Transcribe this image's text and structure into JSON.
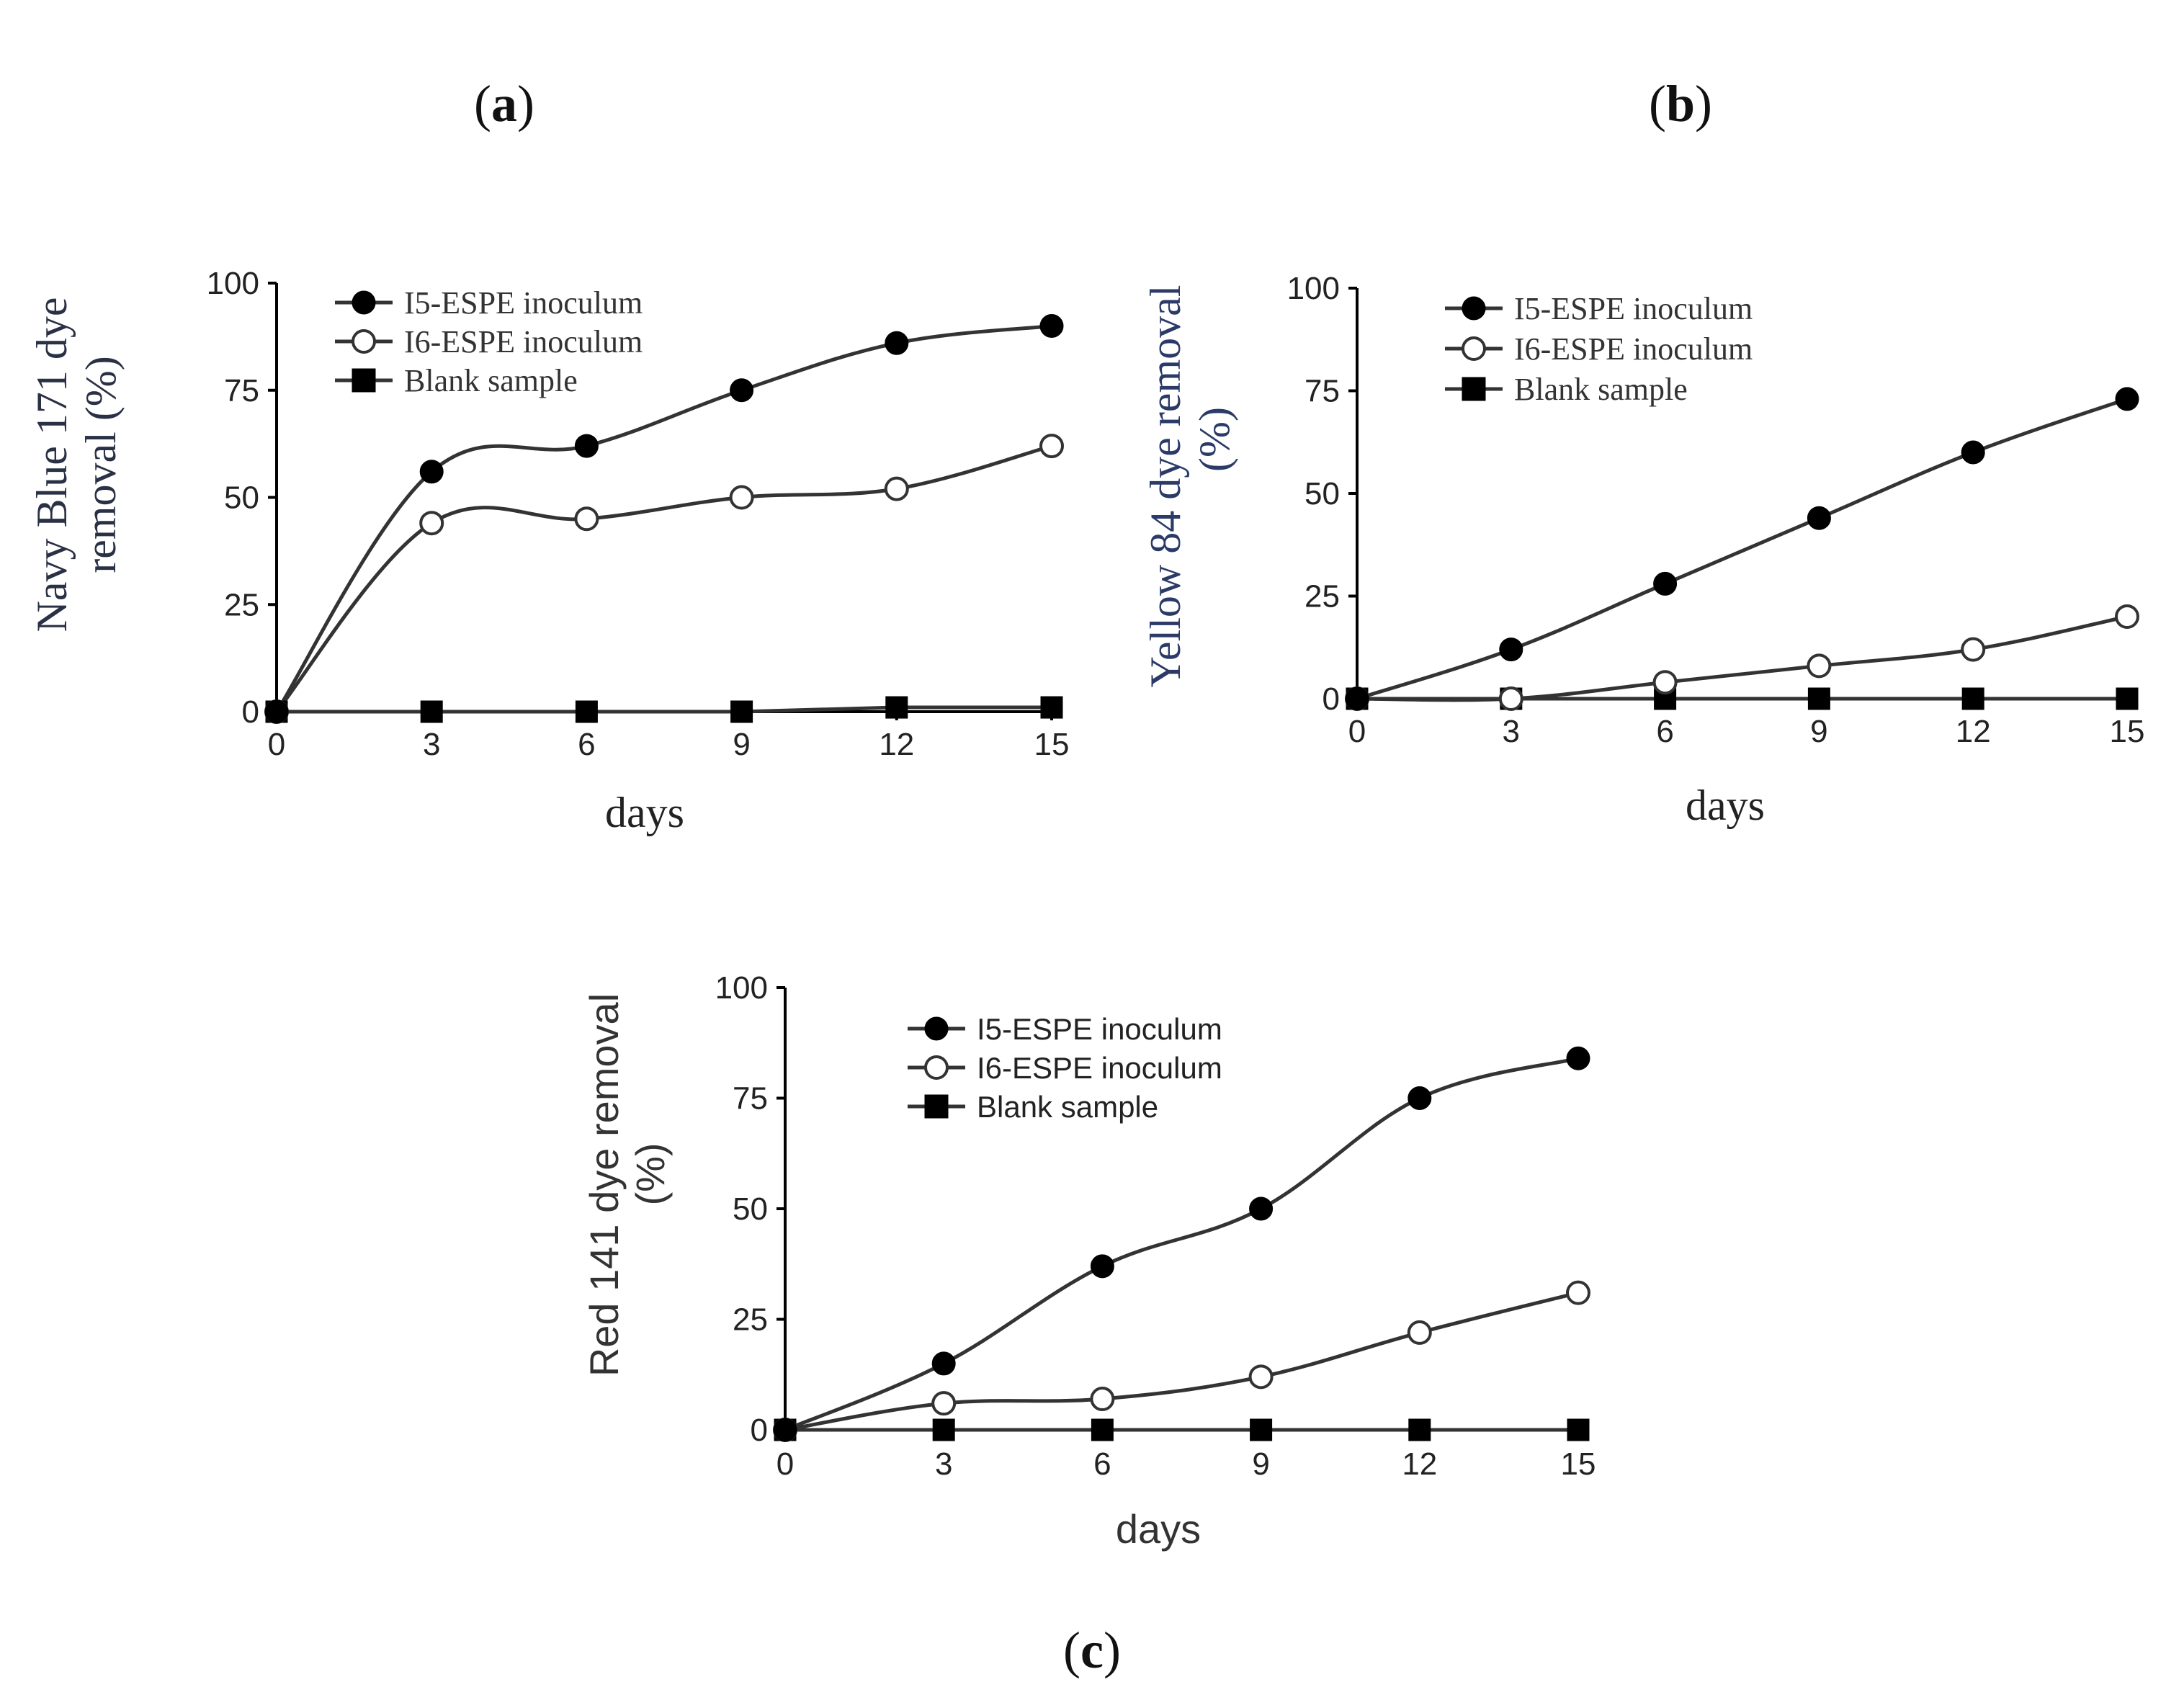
{
  "panel_labels": [
    {
      "open": "(",
      "letter": "a",
      "close": ")"
    },
    {
      "open": "(",
      "letter": "b",
      "close": ")"
    },
    {
      "open": "(",
      "letter": "c",
      "close": ")"
    }
  ],
  "colors": {
    "line": "#333333",
    "marker_filled": "#000000",
    "marker_open_fill": "#ffffff",
    "axis": "#000000",
    "ylabel_b": "#2b3a67"
  },
  "chart_data": [
    {
      "type": "line",
      "panel": "a",
      "title": "",
      "xlabel": "days",
      "ylabel_lines": [
        "Navy Blue 171 dye",
        "removal (%)"
      ],
      "x": [
        0,
        3,
        6,
        9,
        12,
        15
      ],
      "xlim": [
        0,
        15
      ],
      "ylim": [
        0,
        100
      ],
      "xticks": [
        0,
        3,
        6,
        9,
        12,
        15
      ],
      "yticks": [
        0,
        25,
        50,
        75,
        100
      ],
      "xtick_labels": [
        "0",
        "3",
        "6",
        "9",
        "12",
        "15"
      ],
      "ytick_labels": [
        "0",
        "25",
        "50",
        "75",
        "100"
      ],
      "legend_position": "top-left",
      "grid": false,
      "series": [
        {
          "name": "I5-ESPE inoculum",
          "marker": "filled-circle",
          "values": [
            0,
            56,
            62,
            75,
            86,
            90
          ]
        },
        {
          "name": "I6-ESPE inoculum",
          "marker": "open-circle",
          "values": [
            0,
            44,
            45,
            50,
            52,
            62
          ]
        },
        {
          "name": "Blank sample",
          "marker": "filled-square",
          "values": [
            0,
            0,
            0,
            0,
            1,
            1
          ]
        }
      ]
    },
    {
      "type": "line",
      "panel": "b",
      "title": "",
      "xlabel": "days",
      "ylabel_lines": [
        "Yellow 84 dye removal",
        "(%)"
      ],
      "x": [
        0,
        3,
        6,
        9,
        12,
        15
      ],
      "xlim": [
        0,
        15
      ],
      "ylim": [
        0,
        100
      ],
      "xticks": [
        0,
        3,
        6,
        9,
        12,
        15
      ],
      "yticks": [
        0,
        25,
        50,
        75,
        100
      ],
      "xtick_labels": [
        "0",
        "3",
        "6",
        "9",
        "12",
        "15"
      ],
      "ytick_labels": [
        "0",
        "25",
        "50",
        "75",
        "100"
      ],
      "legend_position": "top-left",
      "grid": false,
      "series": [
        {
          "name": "I5-ESPE inoculum",
          "marker": "filled-circle",
          "values": [
            0,
            12,
            28,
            44,
            60,
            73
          ]
        },
        {
          "name": "I6-ESPE inoculum",
          "marker": "open-circle",
          "values": [
            0,
            0,
            4,
            8,
            12,
            20
          ]
        },
        {
          "name": "Blank sample",
          "marker": "filled-square",
          "values": [
            0,
            0,
            0,
            0,
            0,
            0
          ]
        }
      ]
    },
    {
      "type": "line",
      "panel": "c",
      "title": "",
      "xlabel": "days",
      "ylabel_lines": [
        "Red 141 dye removal",
        "(%)"
      ],
      "x": [
        0,
        3,
        6,
        9,
        12,
        15
      ],
      "xlim": [
        0,
        15
      ],
      "ylim": [
        0,
        100
      ],
      "xticks": [
        0,
        3,
        6,
        9,
        12,
        15
      ],
      "yticks": [
        0,
        25,
        50,
        75,
        100
      ],
      "xtick_labels": [
        "0",
        "3",
        "6",
        "9",
        "12",
        "15"
      ],
      "ytick_labels": [
        "0",
        "25",
        "50",
        "75",
        "100"
      ],
      "legend_position": "top-left",
      "grid": false,
      "series": [
        {
          "name": "I5-ESPE inoculum",
          "marker": "filled-circle",
          "values": [
            0,
            15,
            37,
            50,
            75,
            84
          ]
        },
        {
          "name": "I6-ESPE inoculum",
          "marker": "open-circle",
          "values": [
            0,
            6,
            7,
            12,
            22,
            31
          ]
        },
        {
          "name": "Blank sample",
          "marker": "filled-square",
          "values": [
            0,
            0,
            0,
            0,
            0,
            0
          ]
        }
      ]
    }
  ]
}
